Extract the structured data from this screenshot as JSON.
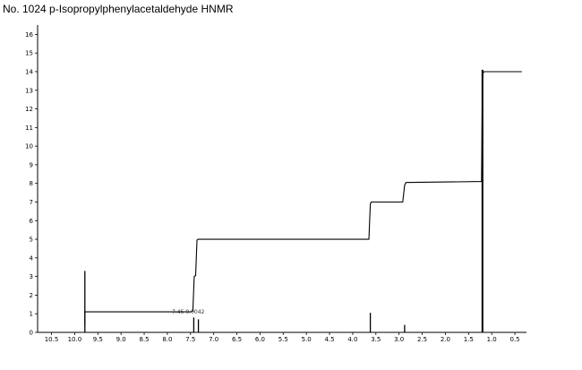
{
  "title": "No. 1024 p-Isopropylphenylacetaldehyde HNMR",
  "chart_data": {
    "type": "line",
    "title": "No. 1024 p-Isopropylphenylacetaldehyde HNMR",
    "xlabel": "",
    "ylabel": "",
    "xlim": [
      10.8,
      0.25
    ],
    "ylim": [
      0,
      16.5
    ],
    "x_ticks": [
      "10.5",
      "10.0",
      "9.5",
      "9.0",
      "8.5",
      "8.0",
      "7.5",
      "7.0",
      "6.5",
      "6.0",
      "5.5",
      "5.0",
      "4.5",
      "4.0",
      "3.5",
      "3.0",
      "2.5",
      "2.0",
      "1.5",
      "1.0",
      "0.5"
    ],
    "y_ticks": [
      "0",
      "1",
      "2",
      "3",
      "4",
      "5",
      "6",
      "7",
      "8",
      "9",
      "10",
      "11",
      "12",
      "13",
      "14",
      "15",
      "16"
    ],
    "series": [
      {
        "values_kind": "integral",
        "x": [
          9.78,
          9.78,
          7.5,
          7.45,
          7.42,
          7.39,
          7.36,
          7.34,
          3.65,
          3.62,
          3.6,
          2.92,
          2.88,
          2.85,
          1.22,
          1.2,
          1.19,
          1.17,
          0.35
        ],
        "y": [
          0.4,
          1.1,
          1.1,
          1.15,
          3.0,
          3.05,
          4.95,
          5.0,
          5.0,
          6.9,
          7.0,
          7.0,
          7.9,
          8.05,
          8.1,
          13.6,
          13.9,
          14.0,
          14.0
        ]
      },
      {
        "values_kind": "spectrum",
        "peaks": [
          {
            "x": 9.78,
            "height": 3.3
          },
          {
            "x": 7.43,
            "height": 0.8
          },
          {
            "x": 7.33,
            "height": 0.7
          },
          {
            "x": 3.62,
            "height": 1.05
          },
          {
            "x": 2.88,
            "height": 0.4
          },
          {
            "x": 1.2,
            "height": 14.1
          }
        ]
      }
    ],
    "annotations": [
      {
        "text": "7.45 0.0042",
        "x": 7.9,
        "y": 1.15
      }
    ],
    "grid": false
  }
}
